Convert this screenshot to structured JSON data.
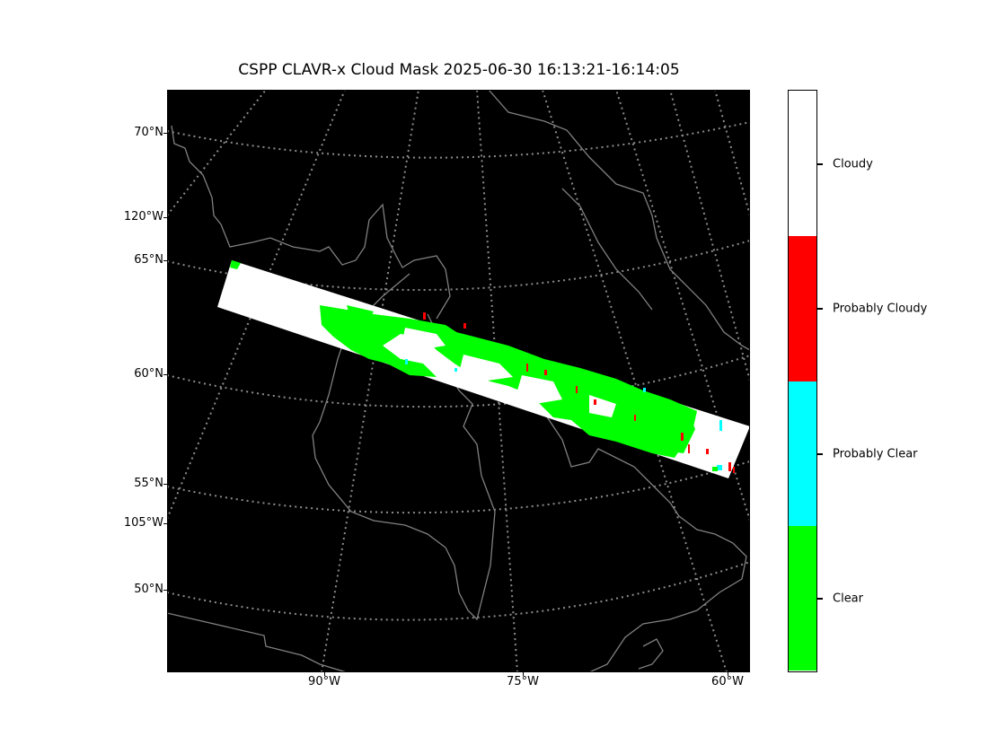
{
  "title": "CSPP CLAVR-x Cloud Mask 2025-06-30 16:13:21-16:14:05",
  "map": {
    "background": "#000000",
    "coastline_color": "#808080",
    "gridline_color": "#8c8c8c",
    "lat_labels": [
      "70°N",
      "65°N",
      "60°N",
      "55°N",
      "50°N"
    ],
    "lon_left_labels": [
      "120°W",
      "105°W"
    ],
    "lon_bottom_labels": [
      "90°W",
      "75°W",
      "60°W"
    ]
  },
  "colorbar": {
    "categories": [
      {
        "label": "Cloudy",
        "color": "#ffffff"
      },
      {
        "label": "Probably Cloudy",
        "color": "#ff0000"
      },
      {
        "label": "Probably Clear",
        "color": "#00ffff"
      },
      {
        "label": "Clear",
        "color": "#00ff00"
      }
    ]
  }
}
